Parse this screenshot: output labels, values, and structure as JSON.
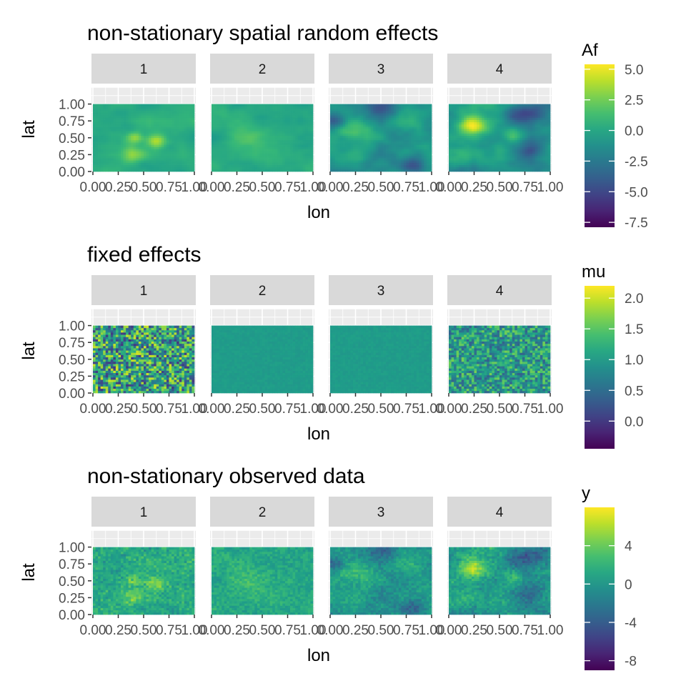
{
  "chart_data": [
    {
      "type": "heatmap",
      "title": "non-stationary spatial random effects",
      "xlabel": "lon",
      "ylabel": "lat",
      "facets": [
        "1",
        "2",
        "3",
        "4"
      ],
      "x_ticks": [
        "0.00",
        "0.25",
        "0.50",
        "0.75",
        "1.00"
      ],
      "y_ticks": [
        "0.00",
        "0.25",
        "0.50",
        "0.75",
        "1.00"
      ],
      "xlim": [
        0,
        1
      ],
      "ylim": [
        0,
        1.25
      ],
      "grid": true,
      "legend": {
        "title": "Af",
        "placement": "right",
        "range": [
          -7.9,
          5.4
        ],
        "breaks": [
          5.0,
          2.5,
          0.0,
          -2.5,
          -5.0,
          -7.5
        ],
        "break_labels": [
          "5.0",
          "2.5",
          "0.0",
          "-2.5",
          "-5.0",
          "-7.5"
        ]
      },
      "facet_summary": [
        {
          "facet": "1",
          "typical_value": 0.5,
          "max_value": 4.5,
          "pattern": "smooth with high values near lon 0.4-0.7, lat 0.2-0.5"
        },
        {
          "facet": "2",
          "typical_value": 0.3,
          "max_value": 2.5,
          "pattern": "smooth, mild variation"
        },
        {
          "facet": "3",
          "typical_value": -1.0,
          "max_value": 3.5,
          "min_value": -6.5,
          "pattern": "low values along top and bottom-right"
        },
        {
          "facet": "4",
          "typical_value": -1.0,
          "max_value": 5.0,
          "min_value": -7.0,
          "pattern": "high values near lon 0.1-0.4, lat 0.5-0.8; low values right side"
        }
      ]
    },
    {
      "type": "heatmap",
      "title": "fixed effects",
      "xlabel": "lon",
      "ylabel": "lat",
      "facets": [
        "1",
        "2",
        "3",
        "4"
      ],
      "x_ticks": [
        "0.00",
        "0.25",
        "0.50",
        "0.75",
        "1.00"
      ],
      "y_ticks": [
        "0.00",
        "0.25",
        "0.50",
        "0.75",
        "1.00"
      ],
      "xlim": [
        0,
        1
      ],
      "ylim": [
        0,
        1.25
      ],
      "grid": true,
      "legend": {
        "title": "mu",
        "placement": "right",
        "range": [
          -0.45,
          2.2
        ],
        "breaks": [
          2.0,
          1.5,
          1.0,
          0.5,
          0.0
        ],
        "break_labels": [
          "2.0",
          "1.5",
          "1.0",
          "0.5",
          "0.0"
        ]
      },
      "facet_summary": [
        {
          "facet": "1",
          "typical_value": 1.0,
          "spread": 1.6,
          "pattern": "uncorrelated noise"
        },
        {
          "facet": "2",
          "typical_value": 1.0,
          "spread": 0.08,
          "pattern": "nearly constant"
        },
        {
          "facet": "3",
          "typical_value": 1.0,
          "spread": 0.08,
          "pattern": "nearly constant"
        },
        {
          "facet": "4",
          "typical_value": 1.0,
          "spread": 1.0,
          "pattern": "uncorrelated noise"
        }
      ]
    },
    {
      "type": "heatmap",
      "title": "non-stationary observed data",
      "xlabel": "lon",
      "ylabel": "lat",
      "facets": [
        "1",
        "2",
        "3",
        "4"
      ],
      "x_ticks": [
        "0.00",
        "0.25",
        "0.50",
        "0.75",
        "1.00"
      ],
      "y_ticks": [
        "0.00",
        "0.25",
        "0.50",
        "0.75",
        "1.00"
      ],
      "xlim": [
        0,
        1
      ],
      "ylim": [
        0,
        1.25
      ],
      "grid": true,
      "legend": {
        "title": "y",
        "placement": "right",
        "range": [
          -9.0,
          8.0
        ],
        "breaks": [
          4,
          0,
          -4,
          -8
        ],
        "break_labels": [
          "4",
          "0",
          "-4",
          "-8"
        ]
      },
      "facet_summary": [
        {
          "facet": "1",
          "typical_value": 1.5,
          "max_value": 6.0,
          "pattern": "random effect 1 plus noise"
        },
        {
          "facet": "2",
          "typical_value": 1.3,
          "max_value": 4.5,
          "pattern": "random effect 2 plus noise"
        },
        {
          "facet": "3",
          "typical_value": 0.0,
          "max_value": 4.5,
          "min_value": -6.0,
          "pattern": "random effect 3 plus noise"
        },
        {
          "facet": "4",
          "typical_value": 0.0,
          "max_value": 6.5,
          "min_value": -6.5,
          "pattern": "random effect 4 plus noise"
        }
      ]
    }
  ]
}
